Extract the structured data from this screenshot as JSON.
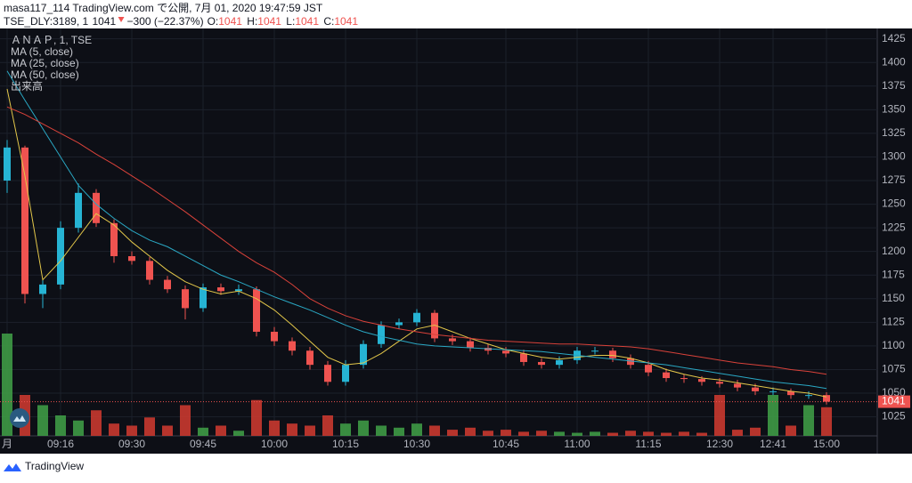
{
  "chart_data": {
    "type": "candlestick",
    "header": "masa117_114 TradingView.com で公開, 7月 01, 2020 19:47:59 JST",
    "symbol": "TSE_DLY:3189, 1",
    "last": 1041,
    "change": "−300 (−22.37%)",
    "ohlc_labels": [
      "O:",
      "H:",
      "L:",
      "C:"
    ],
    "ohlc_values": [
      1041,
      1041,
      1041,
      1041
    ],
    "legend": [
      "ＡＮＡＰ, 1, TSE",
      "MA (5, close)",
      "MA (25, close)",
      "MA (50, close)",
      "出来高"
    ],
    "footer": "TradingView",
    "categories": [
      "月",
      null,
      null,
      "09:16",
      null,
      null,
      null,
      "09:30",
      null,
      null,
      null,
      "09:45",
      null,
      null,
      null,
      "10:00",
      null,
      null,
      null,
      "10:15",
      null,
      null,
      null,
      "10:30",
      null,
      null,
      null,
      null,
      "10:45",
      null,
      null,
      null,
      "11:00",
      null,
      null,
      null,
      "11:15",
      null,
      null,
      null,
      "12:30",
      null,
      null,
      "12:41",
      null,
      null,
      "15:00"
    ],
    "open": [
      1275,
      1310,
      1155,
      1165,
      1225,
      1262,
      1230,
      1195,
      1190,
      1170,
      1160,
      1140,
      1162,
      1158,
      1160,
      1115,
      1105,
      1095,
      1080,
      1062,
      1080,
      1102,
      1122,
      1125,
      1135,
      1108,
      1105,
      1098,
      1095,
      1092,
      1083,
      1080,
      1085,
      1095,
      1095,
      1087,
      1080,
      1072,
      1066,
      1065,
      1062,
      1060,
      1056,
      1052,
      1052,
      1048,
      1048
    ],
    "high": [
      1318,
      1312,
      1170,
      1232,
      1272,
      1266,
      1234,
      1200,
      1194,
      1174,
      1164,
      1166,
      1166,
      1165,
      1163,
      1120,
      1109,
      1099,
      1084,
      1085,
      1106,
      1126,
      1129,
      1139,
      1138,
      1112,
      1109,
      1102,
      1099,
      1096,
      1087,
      1089,
      1099,
      1099,
      1098,
      1091,
      1084,
      1076,
      1070,
      1068,
      1066,
      1064,
      1060,
      1056,
      1055,
      1052,
      1051
    ],
    "low": [
      1262,
      1145,
      1140,
      1160,
      1220,
      1226,
      1188,
      1186,
      1165,
      1156,
      1128,
      1136,
      1154,
      1154,
      1110,
      1100,
      1090,
      1075,
      1058,
      1058,
      1076,
      1098,
      1118,
      1121,
      1104,
      1101,
      1094,
      1091,
      1088,
      1079,
      1076,
      1076,
      1081,
      1091,
      1083,
      1076,
      1068,
      1062,
      1061,
      1058,
      1056,
      1052,
      1048,
      1048,
      1044,
      1044,
      1038
    ],
    "close": [
      1310,
      1155,
      1165,
      1225,
      1262,
      1230,
      1195,
      1190,
      1170,
      1160,
      1140,
      1162,
      1158,
      1160,
      1115,
      1105,
      1095,
      1080,
      1062,
      1080,
      1102,
      1122,
      1125,
      1135,
      1108,
      1105,
      1098,
      1095,
      1092,
      1083,
      1080,
      1085,
      1095,
      1095,
      1087,
      1080,
      1072,
      1066,
      1065,
      1062,
      1060,
      1056,
      1052,
      1052,
      1048,
      1048,
      1041
    ],
    "volume": [
      100,
      40,
      30,
      20,
      15,
      25,
      12,
      10,
      18,
      10,
      30,
      8,
      10,
      5,
      35,
      15,
      12,
      10,
      20,
      12,
      15,
      10,
      8,
      12,
      10,
      6,
      8,
      5,
      6,
      4,
      5,
      4,
      3,
      4,
      3,
      5,
      4,
      3,
      4,
      3,
      40,
      6,
      8,
      40,
      10,
      30,
      28
    ],
    "vlim": [
      0,
      100
    ],
    "series": [
      {
        "name": "MA (5, close)",
        "color": "#e3c74a",
        "values": [
          1372,
          1280,
          1170,
          1190,
          1215,
          1240,
          1228,
          1210,
          1195,
          1180,
          1168,
          1160,
          1155,
          1158,
          1150,
          1138,
          1122,
          1105,
          1088,
          1080,
          1082,
          1092,
          1105,
          1118,
          1122,
          1115,
          1108,
          1102,
          1096,
          1092,
          1088,
          1086,
          1088,
          1090,
          1090,
          1087,
          1082,
          1075,
          1070,
          1066,
          1064,
          1061,
          1058,
          1055,
          1052,
          1050,
          1046
        ]
      },
      {
        "name": "MA (25, close)",
        "color": "#2aa8c4",
        "values": [
          1391,
          1360,
          1330,
          1300,
          1270,
          1250,
          1235,
          1222,
          1212,
          1205,
          1195,
          1185,
          1175,
          1168,
          1160,
          1152,
          1145,
          1138,
          1130,
          1122,
          1115,
          1110,
          1106,
          1102,
          1100,
          1099,
          1098,
          1097,
          1096,
          1095,
          1094,
          1092,
          1090,
          1088,
          1086,
          1084,
          1082,
          1080,
          1077,
          1074,
          1071,
          1068,
          1065,
          1062,
          1060,
          1058,
          1055
        ]
      },
      {
        "name": "MA (50, close)",
        "color": "#d9423a",
        "values": [
          1353,
          1345,
          1335,
          1325,
          1315,
          1303,
          1292,
          1280,
          1268,
          1255,
          1242,
          1228,
          1214,
          1200,
          1188,
          1178,
          1165,
          1150,
          1140,
          1132,
          1126,
          1122,
          1118,
          1115,
          1112,
          1110,
          1108,
          1106,
          1105,
          1104,
          1103,
          1102,
          1102,
          1101,
          1100,
          1099,
          1097,
          1094,
          1091,
          1088,
          1085,
          1082,
          1080,
          1078,
          1075,
          1073,
          1070
        ]
      }
    ],
    "up_color": "#26b4d4",
    "down_color": "#ef5350",
    "volume_up_color": "#3e9a45",
    "volume_down_color": "#c9382f",
    "ylim": [
      986,
      1436
    ],
    "yticks": [
      1025,
      1050,
      1075,
      1100,
      1125,
      1150,
      1175,
      1200,
      1225,
      1250,
      1275,
      1300,
      1325,
      1350,
      1375,
      1400,
      1425
    ],
    "grid": true
  }
}
